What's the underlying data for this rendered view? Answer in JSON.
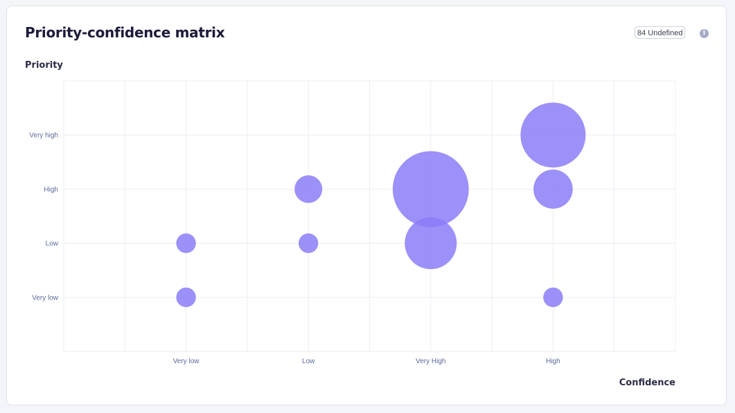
{
  "card": {
    "title": "Priority-confidence matrix",
    "undefined_badge": "84 Undefined",
    "info_icon": "info-icon"
  },
  "colors": {
    "bubble": "#8b7df8",
    "grid": "#ebedf3",
    "tick_label": "#5a6a9a",
    "title": "#1c1b3a"
  },
  "chart_data": {
    "type": "scatter",
    "xlabel": "Confidence",
    "ylabel": "Priority",
    "x_categories": [
      "Very low",
      "Low",
      "Very High",
      "High"
    ],
    "y_categories": [
      "Very low",
      "Low",
      "High",
      "Very high"
    ],
    "grid": true,
    "points": [
      {
        "x": "Very low",
        "y": "Low",
        "size": 1
      },
      {
        "x": "Very low",
        "y": "Very low",
        "size": 1
      },
      {
        "x": "Low",
        "y": "High",
        "size": 2
      },
      {
        "x": "Low",
        "y": "Low",
        "size": 1
      },
      {
        "x": "Very High",
        "y": "High",
        "size": 15
      },
      {
        "x": "Very High",
        "y": "Low",
        "size": 7
      },
      {
        "x": "High",
        "y": "Very high",
        "size": 11
      },
      {
        "x": "High",
        "y": "High",
        "size": 4
      },
      {
        "x": "High",
        "y": "Very low",
        "size": 1
      }
    ]
  }
}
